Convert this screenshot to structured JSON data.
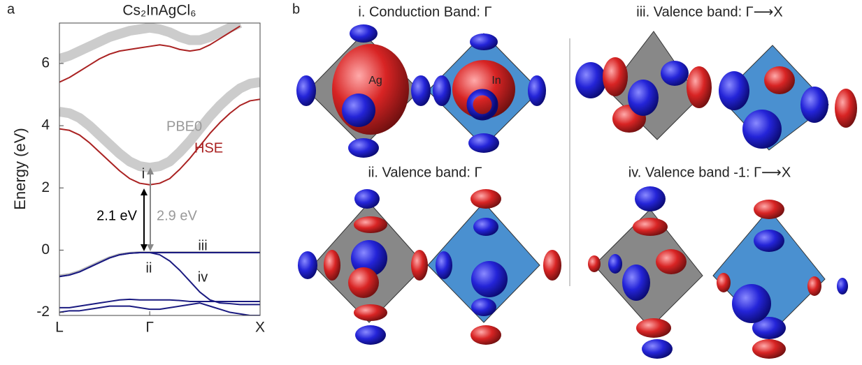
{
  "chart_data": {
    "type": "line",
    "panel_label": "a",
    "title": "Cs₂InAgCl₆",
    "y_label": "Energy (eV)",
    "x": [
      0,
      0.05,
      0.1,
      0.15,
      0.2,
      0.25,
      0.3,
      0.35,
      0.4,
      0.45,
      0.5,
      0.55,
      0.6,
      0.65,
      0.7,
      0.75,
      0.8,
      0.85,
      0.9,
      0.95,
      1.0
    ],
    "xlim": [
      0,
      1
    ],
    "xticks": [
      {
        "value": 0,
        "label": "L"
      },
      {
        "value": 0.45,
        "label": "Γ"
      },
      {
        "value": 1,
        "label": "X"
      }
    ],
    "ylim": [
      -2.1,
      7.3
    ],
    "yticks": [
      -2,
      0,
      2,
      4,
      6
    ],
    "series": [
      {
        "color": "#cccccc",
        "linewidth": 14,
        "values": [
          4.45,
          4.4,
          4.25,
          4.0,
          3.7,
          3.4,
          3.1,
          2.85,
          2.7,
          2.65,
          2.7,
          2.85,
          3.15,
          3.5,
          3.9,
          4.3,
          4.65,
          4.95,
          5.2,
          5.35,
          5.4
        ]
      },
      {
        "color": "#cccccc",
        "linewidth": 14,
        "values": [
          6.15,
          6.25,
          6.4,
          6.55,
          6.7,
          6.85,
          6.95,
          7.05,
          7.1,
          7.15,
          7.1,
          7.0,
          6.85,
          6.75,
          6.75,
          6.85,
          7.0,
          7.15,
          7.3,
          null,
          null
        ]
      },
      {
        "color": "#aa2222",
        "linewidth": 2,
        "values": [
          3.9,
          3.85,
          3.7,
          3.45,
          3.15,
          2.85,
          2.55,
          2.3,
          2.15,
          2.1,
          2.15,
          2.3,
          2.6,
          2.95,
          3.35,
          3.75,
          4.1,
          4.4,
          4.65,
          4.8,
          4.85
        ]
      },
      {
        "color": "#aa2222",
        "linewidth": 2,
        "values": [
          5.4,
          5.55,
          5.75,
          5.95,
          6.15,
          6.3,
          6.4,
          6.45,
          6.5,
          6.55,
          6.6,
          6.55,
          6.45,
          6.4,
          6.45,
          6.6,
          6.8,
          7.0,
          7.2,
          null,
          null
        ]
      },
      {
        "color": "#bbbbbb",
        "linewidth": 3,
        "values": [
          -0.82,
          -0.77,
          -0.67,
          -0.52,
          -0.37,
          -0.23,
          -0.13,
          -0.09,
          -0.07,
          -0.07,
          -0.07,
          -0.07,
          -0.07,
          -0.07,
          -0.07,
          -0.07,
          -0.07,
          -0.07,
          -0.07,
          -0.07,
          -0.07
        ]
      },
      {
        "color": "#1a1a80",
        "linewidth": 2,
        "values": [
          -0.85,
          -0.8,
          -0.7,
          -0.55,
          -0.4,
          -0.25,
          -0.15,
          -0.1,
          -0.08,
          -0.08,
          -0.08,
          -0.08,
          -0.08,
          -0.08,
          -0.08,
          -0.08,
          -0.08,
          -0.08,
          -0.08,
          -0.08,
          -0.08
        ]
      },
      {
        "color": "#1a1a80",
        "linewidth": 2,
        "values": [
          -0.85,
          -0.8,
          -0.7,
          -0.55,
          -0.4,
          -0.25,
          -0.15,
          -0.1,
          -0.08,
          -0.08,
          -0.15,
          -0.35,
          -0.65,
          -1.0,
          -1.35,
          -1.6,
          -1.7,
          -1.72,
          -1.75,
          -1.75,
          -1.75
        ]
      },
      {
        "color": "#1a1a80",
        "linewidth": 2,
        "values": [
          -1.85,
          -1.85,
          -1.8,
          -1.75,
          -1.7,
          -1.65,
          -1.6,
          -1.58,
          -1.6,
          -1.6,
          -1.6,
          -1.6,
          -1.62,
          -1.65,
          -1.65,
          -1.65,
          -1.65,
          -1.65,
          -1.65,
          -1.65,
          -1.65
        ]
      },
      {
        "color": "#1a1a80",
        "linewidth": 2,
        "values": [
          -2.0,
          -1.95,
          -1.95,
          -1.9,
          -1.85,
          -1.8,
          -1.8,
          -1.8,
          -1.85,
          -1.9,
          -1.9,
          -1.85,
          -1.8,
          -1.75,
          -1.7,
          -1.8,
          -1.9,
          -2.0,
          -2.05,
          -2.1,
          -2.1
        ]
      }
    ],
    "annotations": [
      "PBE0",
      "HSE",
      "i",
      "ii",
      "iii",
      "iv",
      "2.1 eV",
      "2.9 eV"
    ]
  },
  "panel_b": {
    "label": "b",
    "titles": [
      "i. Conduction Band: Γ",
      "ii. Valence band: Γ",
      "iii. Valence band: Γ⟶X",
      "iv. Valence band -1: Γ⟶X"
    ],
    "atoms": [
      "Ag",
      "In"
    ]
  }
}
